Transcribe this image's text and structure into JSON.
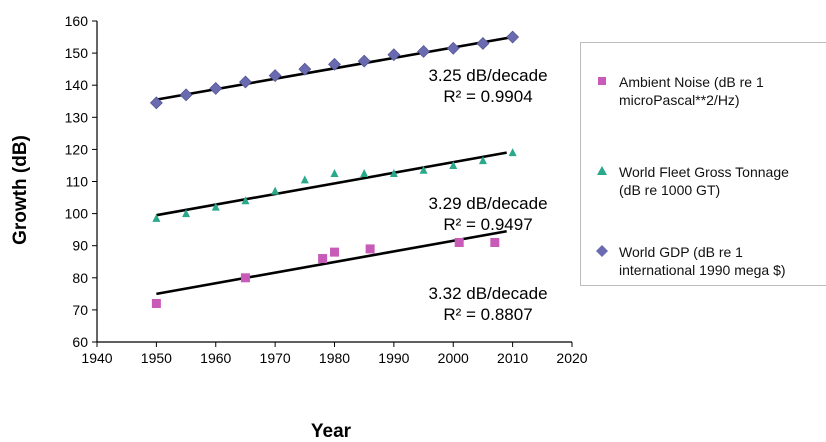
{
  "chart_data": {
    "type": "scatter",
    "xlabel": "Year",
    "ylabel": "Growth (dB)",
    "xlim": [
      1940,
      2020
    ],
    "ylim": [
      60,
      160
    ],
    "xticks": [
      1940,
      1950,
      1960,
      1970,
      1980,
      1990,
      2000,
      2010,
      2020
    ],
    "yticks": [
      60,
      70,
      80,
      90,
      100,
      110,
      120,
      130,
      140,
      150,
      160
    ],
    "legend_position": "right",
    "series": [
      {
        "key": "noise",
        "name_lines": [
          "Ambient Noise (dB re 1",
          "microPascal**2/Hz)"
        ],
        "marker": "square",
        "color": "#c85ab8",
        "points": [
          [
            1950,
            72
          ],
          [
            1965,
            80
          ],
          [
            1978,
            86
          ],
          [
            1980,
            88
          ],
          [
            1986,
            89
          ],
          [
            2001,
            91
          ],
          [
            2007,
            91
          ]
        ],
        "trendline": [
          [
            1950,
            75
          ],
          [
            2009,
            94.5
          ]
        ],
        "annotation": [
          "3.32 dB/decade",
          "R² = 0.8807"
        ]
      },
      {
        "key": "tonnage",
        "name_lines": [
          "World Fleet Gross Tonnage",
          "(dB re 1000 GT)"
        ],
        "marker": "triangle",
        "color": "#2aa88a",
        "points": [
          [
            1950,
            98.5
          ],
          [
            1955,
            100
          ],
          [
            1960,
            102
          ],
          [
            1965,
            104
          ],
          [
            1970,
            107
          ],
          [
            1975,
            110.5
          ],
          [
            1980,
            112.5
          ],
          [
            1985,
            112.5
          ],
          [
            1990,
            112.5
          ],
          [
            1995,
            113.5
          ],
          [
            2000,
            115
          ],
          [
            2005,
            116.5
          ],
          [
            2010,
            119
          ]
        ],
        "trendline": [
          [
            1950,
            99.5
          ],
          [
            2009,
            119
          ]
        ],
        "annotation": [
          "3.29 dB/decade",
          "R² = 0.9497"
        ]
      },
      {
        "key": "gdp",
        "name_lines": [
          "World GDP (dB re 1",
          "international 1990 mega $)"
        ],
        "marker": "diamond",
        "color": "#6a6ab0",
        "points": [
          [
            1950,
            134.5
          ],
          [
            1955,
            137
          ],
          [
            1960,
            139
          ],
          [
            1965,
            141
          ],
          [
            1970,
            143
          ],
          [
            1975,
            145
          ],
          [
            1980,
            146.5
          ],
          [
            1985,
            147.5
          ],
          [
            1990,
            149.5
          ],
          [
            1995,
            150.5
          ],
          [
            2000,
            151.5
          ],
          [
            2005,
            153
          ],
          [
            2010,
            155
          ]
        ],
        "trendline": [
          [
            1950,
            135.5
          ],
          [
            2010,
            155
          ]
        ],
        "annotation": [
          "3.25 dB/decade",
          "R² = 0.9904"
        ]
      }
    ]
  }
}
